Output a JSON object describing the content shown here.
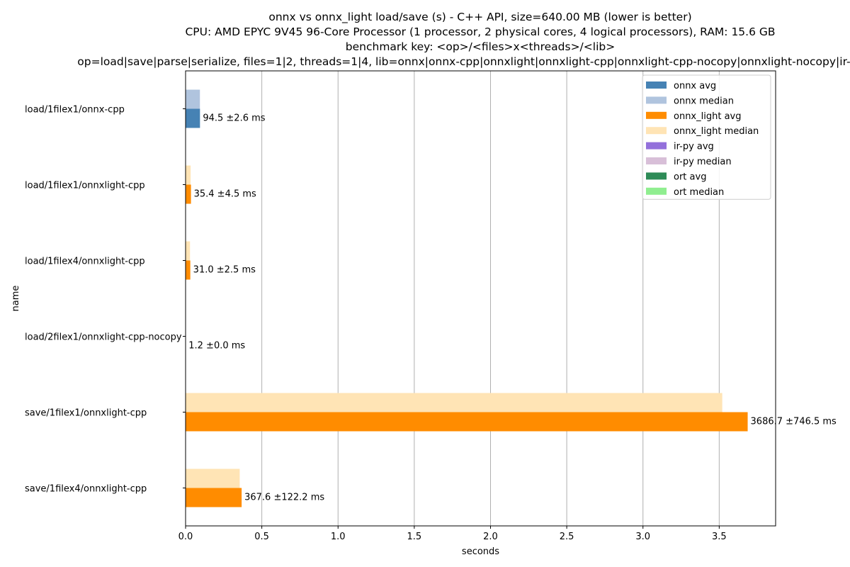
{
  "chart_data": {
    "type": "bar",
    "orientation": "horizontal",
    "title_lines": [
      "onnx vs onnx_light load/save (s) - C++ API, size=640.00 MB (lower is better)",
      "CPU: AMD EPYC 9V45 96-Core Processor (1 processor, 2 physical cores, 4 logical processors), RAM: 15.6 GB",
      "benchmark key: <op>/<files>x<threads>/<lib>",
      "op=load|save|parse|serialize, files=1|2, threads=1|4, lib=onnx|onnx-cpp|onnxlight|onnxlight-cpp|onnxlight-cpp-nocopy|onnxlight-nocopy|ir-py|ort"
    ],
    "xlabel": "seconds",
    "ylabel": "name",
    "xlim": [
      0,
      3.87
    ],
    "xticks": [
      "0.0",
      "0.5",
      "1.0",
      "1.5",
      "2.0",
      "2.5",
      "3.0",
      "3.5"
    ],
    "grid": "vertical",
    "legend_position": "top-right",
    "categories": [
      "load/1filex1/onnx-cpp",
      "load/1filex1/onnxlight-cpp",
      "load/1filex4/onnxlight-cpp",
      "load/2filex1/onnxlight-cpp-nocopy",
      "save/1filex1/onnxlight-cpp",
      "save/1filex4/onnxlight-cpp"
    ],
    "bars": [
      {
        "avg": 0.0945,
        "median": 0.094,
        "lib": "onnx",
        "label": "94.5 ±2.6 ms"
      },
      {
        "avg": 0.0354,
        "median": 0.033,
        "lib": "onnx_light",
        "label": "35.4 ±4.5 ms"
      },
      {
        "avg": 0.031,
        "median": 0.029,
        "lib": "onnx_light",
        "label": "31.0 ±2.5 ms"
      },
      {
        "avg": 0.0012,
        "median": 0.0012,
        "lib": "onnx_light",
        "label": "1.2 ±0.0 ms"
      },
      {
        "avg": 3.6867,
        "median": 3.52,
        "lib": "onnx_light",
        "label": "3686.7 ±746.5 ms"
      },
      {
        "avg": 0.3676,
        "median": 0.355,
        "lib": "onnx_light",
        "label": "367.6 ±122.2 ms"
      }
    ],
    "series_colors": {
      "onnx": {
        "avg": "#4682b4",
        "median": "#b0c4de"
      },
      "onnx_light": {
        "avg": "#ff8c00",
        "median": "#ffe4b5"
      }
    },
    "legend": [
      {
        "label": "onnx avg",
        "color": "#4682b4"
      },
      {
        "label": "onnx median",
        "color": "#b0c4de"
      },
      {
        "label": "onnx_light avg",
        "color": "#ff8c00"
      },
      {
        "label": "onnx_light median",
        "color": "#ffe4b5"
      },
      {
        "label": "ir-py avg",
        "color": "#9370db"
      },
      {
        "label": "ir-py median",
        "color": "#d8bfd8"
      },
      {
        "label": "ort avg",
        "color": "#2e8b57"
      },
      {
        "label": "ort median",
        "color": "#90ee90"
      }
    ]
  }
}
